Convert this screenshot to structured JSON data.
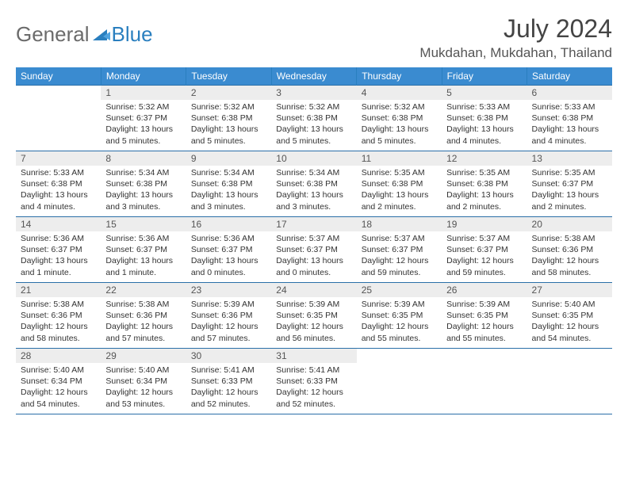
{
  "logo": {
    "general": "General",
    "blue": "Blue"
  },
  "header": {
    "month_title": "July 2024",
    "location": "Mukdahan, Mukdahan, Thailand"
  },
  "colors": {
    "header_bg": "#3a8bd0",
    "header_border": "#2a7fbf",
    "cell_border": "#2a6fa8",
    "daynum_bg": "#ededed",
    "logo_gray": "#6b6b6b",
    "logo_blue": "#2a7fbf"
  },
  "weekdays": [
    "Sunday",
    "Monday",
    "Tuesday",
    "Wednesday",
    "Thursday",
    "Friday",
    "Saturday"
  ],
  "weeks": [
    [
      null,
      {
        "n": "1",
        "sr": "5:32 AM",
        "ss": "6:37 PM",
        "dl": "13 hours and 5 minutes."
      },
      {
        "n": "2",
        "sr": "5:32 AM",
        "ss": "6:38 PM",
        "dl": "13 hours and 5 minutes."
      },
      {
        "n": "3",
        "sr": "5:32 AM",
        "ss": "6:38 PM",
        "dl": "13 hours and 5 minutes."
      },
      {
        "n": "4",
        "sr": "5:32 AM",
        "ss": "6:38 PM",
        "dl": "13 hours and 5 minutes."
      },
      {
        "n": "5",
        "sr": "5:33 AM",
        "ss": "6:38 PM",
        "dl": "13 hours and 4 minutes."
      },
      {
        "n": "6",
        "sr": "5:33 AM",
        "ss": "6:38 PM",
        "dl": "13 hours and 4 minutes."
      }
    ],
    [
      {
        "n": "7",
        "sr": "5:33 AM",
        "ss": "6:38 PM",
        "dl": "13 hours and 4 minutes."
      },
      {
        "n": "8",
        "sr": "5:34 AM",
        "ss": "6:38 PM",
        "dl": "13 hours and 3 minutes."
      },
      {
        "n": "9",
        "sr": "5:34 AM",
        "ss": "6:38 PM",
        "dl": "13 hours and 3 minutes."
      },
      {
        "n": "10",
        "sr": "5:34 AM",
        "ss": "6:38 PM",
        "dl": "13 hours and 3 minutes."
      },
      {
        "n": "11",
        "sr": "5:35 AM",
        "ss": "6:38 PM",
        "dl": "13 hours and 2 minutes."
      },
      {
        "n": "12",
        "sr": "5:35 AM",
        "ss": "6:38 PM",
        "dl": "13 hours and 2 minutes."
      },
      {
        "n": "13",
        "sr": "5:35 AM",
        "ss": "6:37 PM",
        "dl": "13 hours and 2 minutes."
      }
    ],
    [
      {
        "n": "14",
        "sr": "5:36 AM",
        "ss": "6:37 PM",
        "dl": "13 hours and 1 minute."
      },
      {
        "n": "15",
        "sr": "5:36 AM",
        "ss": "6:37 PM",
        "dl": "13 hours and 1 minute."
      },
      {
        "n": "16",
        "sr": "5:36 AM",
        "ss": "6:37 PM",
        "dl": "13 hours and 0 minutes."
      },
      {
        "n": "17",
        "sr": "5:37 AM",
        "ss": "6:37 PM",
        "dl": "13 hours and 0 minutes."
      },
      {
        "n": "18",
        "sr": "5:37 AM",
        "ss": "6:37 PM",
        "dl": "12 hours and 59 minutes."
      },
      {
        "n": "19",
        "sr": "5:37 AM",
        "ss": "6:37 PM",
        "dl": "12 hours and 59 minutes."
      },
      {
        "n": "20",
        "sr": "5:38 AM",
        "ss": "6:36 PM",
        "dl": "12 hours and 58 minutes."
      }
    ],
    [
      {
        "n": "21",
        "sr": "5:38 AM",
        "ss": "6:36 PM",
        "dl": "12 hours and 58 minutes."
      },
      {
        "n": "22",
        "sr": "5:38 AM",
        "ss": "6:36 PM",
        "dl": "12 hours and 57 minutes."
      },
      {
        "n": "23",
        "sr": "5:39 AM",
        "ss": "6:36 PM",
        "dl": "12 hours and 57 minutes."
      },
      {
        "n": "24",
        "sr": "5:39 AM",
        "ss": "6:35 PM",
        "dl": "12 hours and 56 minutes."
      },
      {
        "n": "25",
        "sr": "5:39 AM",
        "ss": "6:35 PM",
        "dl": "12 hours and 55 minutes."
      },
      {
        "n": "26",
        "sr": "5:39 AM",
        "ss": "6:35 PM",
        "dl": "12 hours and 55 minutes."
      },
      {
        "n": "27",
        "sr": "5:40 AM",
        "ss": "6:35 PM",
        "dl": "12 hours and 54 minutes."
      }
    ],
    [
      {
        "n": "28",
        "sr": "5:40 AM",
        "ss": "6:34 PM",
        "dl": "12 hours and 54 minutes."
      },
      {
        "n": "29",
        "sr": "5:40 AM",
        "ss": "6:34 PM",
        "dl": "12 hours and 53 minutes."
      },
      {
        "n": "30",
        "sr": "5:41 AM",
        "ss": "6:33 PM",
        "dl": "12 hours and 52 minutes."
      },
      {
        "n": "31",
        "sr": "5:41 AM",
        "ss": "6:33 PM",
        "dl": "12 hours and 52 minutes."
      },
      null,
      null,
      null
    ]
  ],
  "labels": {
    "sunrise": "Sunrise:",
    "sunset": "Sunset:",
    "daylight": "Daylight:"
  }
}
